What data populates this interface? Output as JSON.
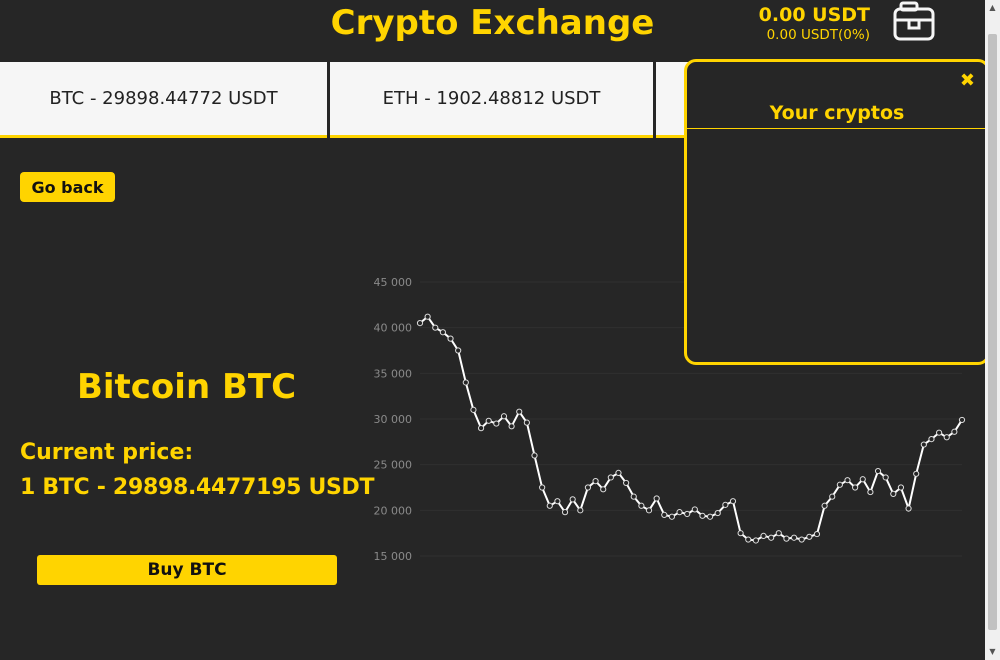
{
  "header": {
    "title": "Crypto Exchange",
    "balance_main": "0.00 USDT",
    "balance_sub": "0.00 USDT(0%)",
    "wallet_icon": "briefcase-icon"
  },
  "ticker": [
    {
      "label": "BTC - 29898.44772 USDT"
    },
    {
      "label": "ETH - 1902.48812 USDT"
    },
    {
      "label": ""
    }
  ],
  "detail": {
    "go_back_label": "Go back",
    "coin_name": "Bitcoin BTC",
    "price_label": "Current price:",
    "price_value": "1 BTC - 29898.4477195 USDT",
    "buy_label": "Buy BTC"
  },
  "crypto_panel": {
    "title": "Your cryptos",
    "close_icon": "close-icon"
  },
  "colors": {
    "accent": "#ffd400",
    "background": "#262626",
    "card": "#f6f6f6"
  },
  "chart_data": {
    "type": "line",
    "series": [
      {
        "values": [
          40500,
          41200,
          40000,
          39500,
          38800,
          37500,
          34000,
          31000,
          29000,
          29800,
          29500,
          30300,
          29200,
          30800,
          29600,
          26000,
          22500,
          20500,
          21000,
          19800,
          21200,
          20000,
          22500,
          23200,
          22300,
          23600,
          24100,
          23000,
          21500,
          20500,
          20000,
          21300,
          19500,
          19300,
          19800,
          19600,
          20100,
          19400,
          19300,
          19700,
          20600,
          21000,
          17500,
          16800,
          16700,
          17200,
          17000,
          17500,
          16900,
          17000,
          16800,
          17100,
          17400,
          20500,
          21500,
          22800,
          23300,
          22500,
          23400,
          22000,
          24300,
          23600,
          21800,
          22500,
          20200,
          24000,
          27200,
          27800,
          28500,
          28000,
          28600,
          29900
        ]
      }
    ],
    "y_ticks": [
      "45 000",
      "40 000",
      "35 000",
      "30 000",
      "25 000",
      "20 000",
      "15 000"
    ],
    "ylim": [
      15000,
      45000
    ],
    "grid": true
  }
}
